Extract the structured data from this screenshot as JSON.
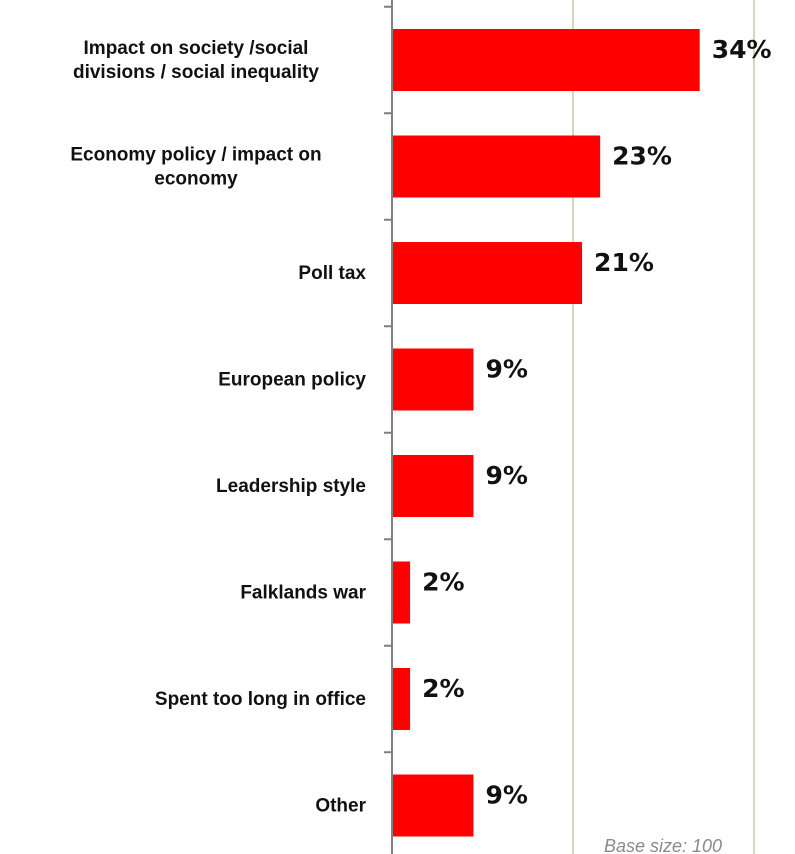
{
  "chart_data": {
    "type": "bar",
    "orientation": "horizontal",
    "categories": [
      [
        "Impact on society /social",
        "divisions / social inequality"
      ],
      [
        "Economy policy / impact on",
        "economy"
      ],
      [
        "Poll tax"
      ],
      [
        "European policy"
      ],
      [
        "Leadership style"
      ],
      [
        "Falklands war"
      ],
      [
        "Spent too long in office"
      ],
      [
        "Other"
      ]
    ],
    "values": [
      34,
      23,
      21,
      9,
      9,
      2,
      2,
      9
    ],
    "value_labels": [
      "34%",
      "23%",
      "21%",
      "9%",
      "9%",
      "2%",
      "2%",
      "9%"
    ],
    "xlim": [
      0,
      40
    ],
    "x_gridlines": [
      20,
      40
    ],
    "grid": true,
    "colors": {
      "bar": "#ff0000",
      "grid": "#d6d9b8",
      "axis": "#7f7f7f"
    },
    "footnote": "Base size: 100"
  }
}
